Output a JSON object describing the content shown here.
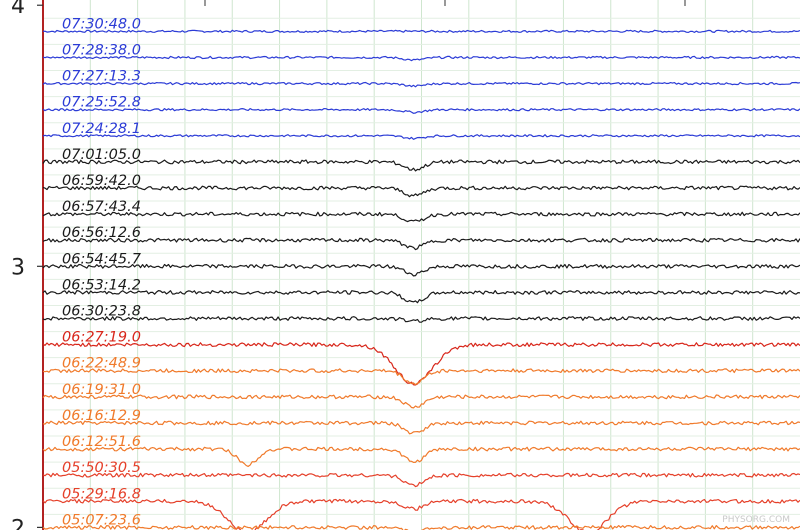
{
  "chart_data": {
    "type": "line",
    "yticks": [
      {
        "value": 4,
        "label": "4"
      },
      {
        "value": 3,
        "label": "3"
      },
      {
        "value": 2,
        "label": "2"
      }
    ],
    "ylim": [
      1.99,
      4.02
    ],
    "series": [
      {
        "name": "07:30:48.0",
        "color": "#2b3bd6",
        "offset": 3.9,
        "dips": []
      },
      {
        "name": "07:28:38.0",
        "color": "#2b3bd6",
        "offset": 3.8,
        "dips": [
          {
            "x": 0.49,
            "depth": 0.01
          }
        ]
      },
      {
        "name": "07:27:13.3",
        "color": "#2b3bd6",
        "offset": 3.7,
        "dips": [
          {
            "x": 0.49,
            "depth": 0.01
          }
        ]
      },
      {
        "name": "07:25:52.8",
        "color": "#2b3bd6",
        "offset": 3.6,
        "dips": [
          {
            "x": 0.49,
            "depth": 0.01
          }
        ]
      },
      {
        "name": "07:24:28.1",
        "color": "#2b3bd6",
        "offset": 3.5,
        "dips": [
          {
            "x": 0.49,
            "depth": 0.01
          }
        ]
      },
      {
        "name": "07:01:05.0",
        "color": "#1a1a1a",
        "offset": 3.4,
        "dips": [
          {
            "x": 0.49,
            "depth": 0.03
          }
        ]
      },
      {
        "name": "06:59:42.0",
        "color": "#1a1a1a",
        "offset": 3.3,
        "dips": [
          {
            "x": 0.49,
            "depth": 0.03
          }
        ]
      },
      {
        "name": "06:57:43.4",
        "color": "#1a1a1a",
        "offset": 3.2,
        "dips": [
          {
            "x": 0.49,
            "depth": 0.03
          }
        ]
      },
      {
        "name": "06:56:12.6",
        "color": "#1a1a1a",
        "offset": 3.1,
        "dips": [
          {
            "x": 0.49,
            "depth": 0.03
          }
        ]
      },
      {
        "name": "06:54:45.7",
        "color": "#1a1a1a",
        "offset": 3.0,
        "dips": [
          {
            "x": 0.49,
            "depth": 0.03
          }
        ]
      },
      {
        "name": "06:53:14.2",
        "color": "#1a1a1a",
        "offset": 2.9,
        "dips": [
          {
            "x": 0.49,
            "depth": 0.04
          }
        ]
      },
      {
        "name": "06:30:23.8",
        "color": "#1a1a1a",
        "offset": 2.8,
        "dips": [
          {
            "x": 0.49,
            "depth": 0.01
          }
        ]
      },
      {
        "name": "06:27:19.0",
        "color": "#d8261a",
        "offset": 2.7,
        "dips": [
          {
            "x": 0.49,
            "depth": 0.15
          }
        ]
      },
      {
        "name": "06:22:48.9",
        "color": "#f07a2b",
        "offset": 2.6,
        "dips": [
          {
            "x": 0.49,
            "depth": 0.05
          }
        ]
      },
      {
        "name": "06:19:31.0",
        "color": "#f07a2b",
        "offset": 2.5,
        "dips": [
          {
            "x": 0.49,
            "depth": 0.04
          }
        ]
      },
      {
        "name": "06:16:12.9",
        "color": "#f07a2b",
        "offset": 2.4,
        "dips": [
          {
            "x": 0.49,
            "depth": 0.04
          }
        ]
      },
      {
        "name": "06:12:51.6",
        "color": "#f07a2b",
        "offset": 2.3,
        "dips": [
          {
            "x": 0.27,
            "depth": 0.06
          },
          {
            "x": 0.49,
            "depth": 0.05
          }
        ]
      },
      {
        "name": "05:50:30.5",
        "color": "#e5402a",
        "offset": 2.2,
        "dips": [
          {
            "x": 0.49,
            "depth": 0.04
          }
        ]
      },
      {
        "name": "05:29:16.8",
        "color": "#e5402a",
        "offset": 2.1,
        "dips": [
          {
            "x": 0.27,
            "depth": 0.12
          },
          {
            "x": 0.49,
            "depth": 0.03
          },
          {
            "x": 0.72,
            "depth": 0.12
          }
        ]
      },
      {
        "name": "05:07:23.6",
        "color": "#f07a2b",
        "offset": 2.0,
        "dips": [
          {
            "x": 0.49,
            "depth": 0.02
          }
        ]
      }
    ],
    "grid": true
  },
  "watermark": "PHYSORG.COM"
}
